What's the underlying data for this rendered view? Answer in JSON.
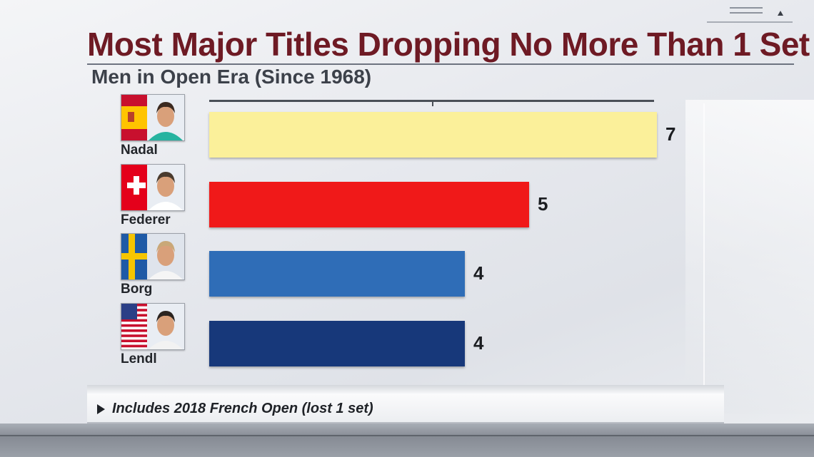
{
  "title": "Most Major Titles Dropping No More Than 1 Set",
  "subtitle": "Men in Open Era (Since 1968)",
  "footnote": "Includes 2018 French Open (lost 1 set)",
  "chart_data": {
    "type": "bar",
    "orientation": "horizontal",
    "title": "Most Major Titles Dropping No More Than 1 Set",
    "subtitle": "Men in Open Era (Since 1968)",
    "categories": [
      "Nadal",
      "Federer",
      "Borg",
      "Lendl"
    ],
    "values": [
      7,
      5,
      4,
      4
    ],
    "value_labels": [
      "7",
      "5",
      "4",
      "4"
    ],
    "xlim": [
      0,
      7
    ],
    "grid": false,
    "legend": "none",
    "colors": [
      "#fbf09a",
      "#f01919",
      "#2f6db7",
      "#17387a"
    ],
    "flags": [
      "Spain",
      "Switzerland",
      "Sweden",
      "United States"
    ]
  }
}
